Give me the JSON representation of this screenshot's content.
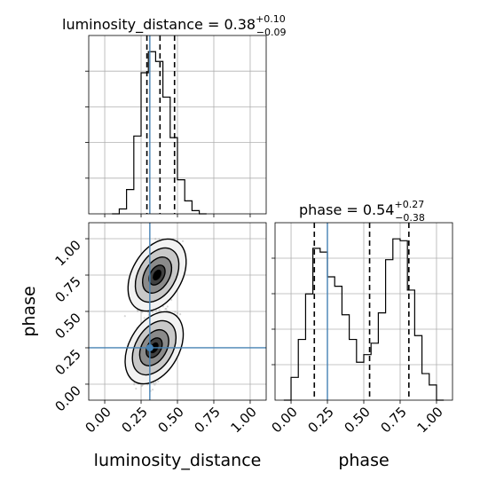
{
  "chart_data": {
    "type": "corner",
    "parameters": [
      "luminosity_distance",
      "phase"
    ],
    "truths": {
      "luminosity_distance": 0.31,
      "phase": 0.25
    },
    "titles": {
      "luminosity_distance": {
        "label": "luminosity_distance = 0.38",
        "plus": "+0.10",
        "minus": "−0.09"
      },
      "phase": {
        "label": "phase = 0.54",
        "plus": "+0.27",
        "minus": "−0.38"
      }
    },
    "xlabel_1": "luminosity_distance",
    "xlabel_2": "phase",
    "ylabel_2d": "phase",
    "axis_ticks": [
      "0.00",
      "0.25",
      "0.50",
      "0.75",
      "1.00"
    ],
    "hist_luminosity_distance": {
      "bin_edges": [
        0.05,
        0.1,
        0.15,
        0.2,
        0.25,
        0.3,
        0.35,
        0.4,
        0.45,
        0.5,
        0.55,
        0.6,
        0.65,
        0.7
      ],
      "counts": [
        0,
        3,
        15,
        48,
        87,
        100,
        94,
        72,
        47,
        21,
        8,
        2,
        0
      ],
      "quantiles": [
        0.29,
        0.38,
        0.48
      ]
    },
    "hist_phase": {
      "bin_edges": [
        -0.05,
        0.0,
        0.05,
        0.1,
        0.15,
        0.2,
        0.25,
        0.3,
        0.35,
        0.4,
        0.45,
        0.5,
        0.55,
        0.6,
        0.65,
        0.7,
        0.75,
        0.8,
        0.85,
        0.9,
        0.95,
        1.0,
        1.05
      ],
      "counts": [
        0,
        12,
        32,
        56,
        80,
        78,
        65,
        60,
        45,
        32,
        20,
        24,
        30,
        46,
        74,
        85,
        84,
        58,
        34,
        14,
        8,
        0
      ],
      "quantiles": [
        0.16,
        0.54,
        0.81
      ]
    },
    "density_modes": [
      {
        "x": 0.36,
        "y": 0.75,
        "sx": 0.055,
        "sy": 0.13
      },
      {
        "x": 0.34,
        "y": 0.25,
        "sx": 0.055,
        "sy": 0.13
      }
    ]
  }
}
